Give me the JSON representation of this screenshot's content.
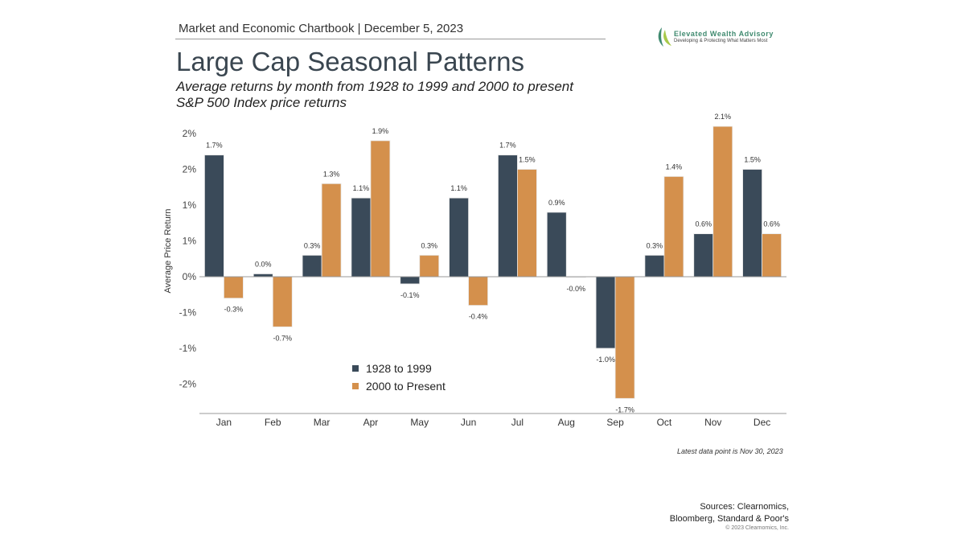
{
  "header": {
    "text": "Market and Economic Chartbook | December 5, 2023"
  },
  "title": "Large Cap Seasonal Patterns",
  "subtitle": [
    "Average returns by month from 1928 to 1999 and 2000 to present",
    "S&P 500 Index price returns"
  ],
  "logo": {
    "name": "Elevated Wealth Advisory",
    "tagline": "Developing & Protecting What Matters Most"
  },
  "note": "Latest data point is Nov 30, 2023",
  "sources": [
    "Sources: Clearnomics,",
    "Bloomberg, Standard & Poor's"
  ],
  "copyright": "© 2023 Clearnomics, Inc.",
  "colors": {
    "series1": "#3a4a59",
    "series2": "#d4904c"
  },
  "chart_data": {
    "type": "bar",
    "categories": [
      "Jan",
      "Feb",
      "Mar",
      "Apr",
      "May",
      "Jun",
      "Jul",
      "Aug",
      "Sep",
      "Oct",
      "Nov",
      "Dec"
    ],
    "series": [
      {
        "name": "1928 to 1999",
        "values": [
          1.7,
          0.04,
          0.3,
          1.1,
          -0.1,
          1.1,
          1.7,
          0.9,
          -1.0,
          0.3,
          0.6,
          1.5
        ],
        "labels": [
          "1.7%",
          "0.0%",
          "0.3%",
          "1.1%",
          "-0.1%",
          "1.1%",
          "1.7%",
          "0.9%",
          "-1.0%",
          "0.3%",
          "0.6%",
          "1.5%"
        ]
      },
      {
        "name": "2000 to Present",
        "values": [
          -0.3,
          -0.7,
          1.3,
          1.9,
          0.3,
          -0.4,
          1.5,
          -0.01,
          -1.7,
          1.4,
          2.1,
          0.6
        ],
        "labels": [
          "-0.3%",
          "-0.7%",
          "1.3%",
          "1.9%",
          "0.3%",
          "-0.4%",
          "1.5%",
          "-0.0%",
          "-1.7%",
          "1.4%",
          "2.1%",
          "0.6%"
        ]
      }
    ],
    "ylabel": "Average Price Return",
    "yticks": [
      2.0,
      1.5,
      1.0,
      0.5,
      0,
      -0.5,
      -1.0,
      -1.5
    ],
    "ytick_labels": [
      "2%",
      "2%",
      "1%",
      "1%",
      "0%",
      "-1%",
      "-1%",
      "-2%"
    ],
    "ylim": [
      -1.9,
      2.3
    ],
    "grid": false,
    "legend": "bottom-center"
  }
}
